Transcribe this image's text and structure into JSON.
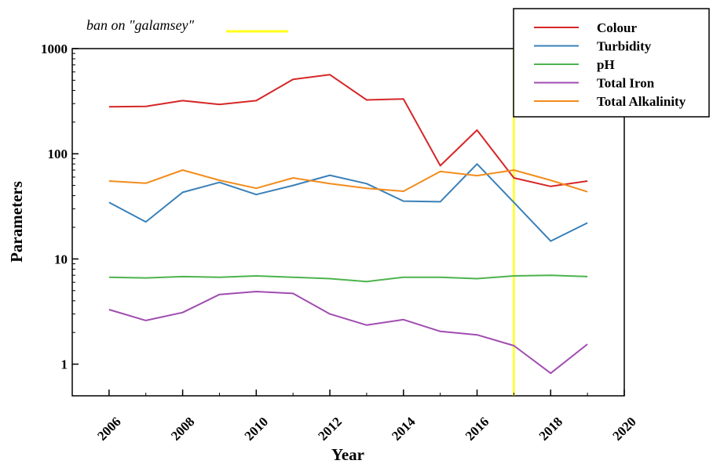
{
  "chart_data": {
    "type": "line",
    "title": "",
    "xlabel": "Year",
    "ylabel": "Parameters",
    "xlim": [
      2005,
      2020
    ],
    "ylim": [
      0.5,
      1000
    ],
    "y_scale": "log",
    "x_ticks": [
      2006,
      2008,
      2010,
      2012,
      2014,
      2016,
      2018,
      2020
    ],
    "x_tick_labels": [
      "2006",
      "2008",
      "2010",
      "2012",
      "2014",
      "2016",
      "2018",
      "2020"
    ],
    "y_ticks": [
      1,
      10,
      100,
      1000
    ],
    "y_tick_labels": [
      "1",
      "10",
      "100",
      "1000"
    ],
    "grid": false,
    "legend_position": "top-right",
    "x": [
      2006,
      2007,
      2008,
      2009,
      2010,
      2011,
      2012,
      2013,
      2014,
      2015,
      2016,
      2017,
      2018,
      2019
    ],
    "series": [
      {
        "name": "Colour",
        "color": "#d62728",
        "values": [
          280,
          282,
          320,
          295,
          320,
          510,
          565,
          325,
          332,
          77,
          168,
          59,
          49,
          55
        ]
      },
      {
        "name": "Turbidity",
        "color": "#3a80b8",
        "values": [
          34.5,
          22.5,
          43,
          53.5,
          41,
          50,
          62.5,
          52,
          35.5,
          35,
          80,
          34.5,
          14.8,
          22
        ]
      },
      {
        "name": "pH",
        "color": "#4db34d",
        "values": [
          6.7,
          6.6,
          6.8,
          6.7,
          6.9,
          6.7,
          6.5,
          6.1,
          6.7,
          6.7,
          6.5,
          6.9,
          7.0,
          6.8
        ]
      },
      {
        "name": "Total Iron",
        "color": "#a14cb0",
        "values": [
          3.3,
          2.6,
          3.1,
          4.6,
          4.9,
          4.7,
          3.0,
          2.35,
          2.65,
          2.05,
          1.9,
          1.5,
          0.82,
          1.55
        ]
      },
      {
        "name": "Total Alkalinity",
        "color": "#f28c1c",
        "values": [
          55,
          52.5,
          70,
          56,
          47,
          59,
          52,
          47,
          44,
          68,
          62,
          70,
          56,
          43.5
        ]
      }
    ],
    "annotation": {
      "text": "ban on \"galamsey\"",
      "marker_year": 2017,
      "color": "#ffff1a"
    }
  }
}
